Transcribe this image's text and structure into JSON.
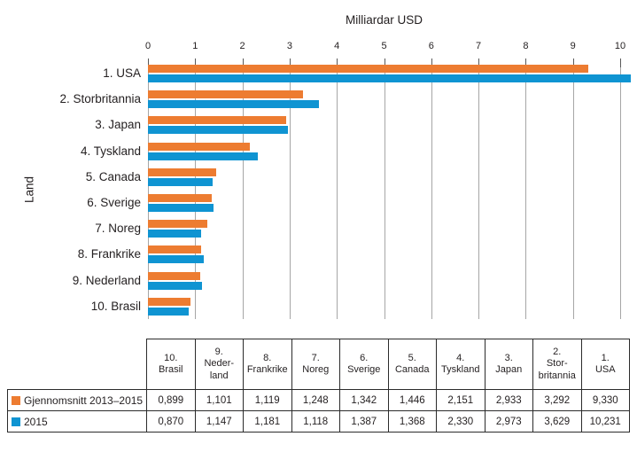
{
  "chart_data": {
    "type": "bar",
    "orientation": "horizontal",
    "title": "Milliardar USD",
    "xlabel": "Milliardar USD",
    "ylabel": "Land",
    "xlim": [
      0,
      10
    ],
    "x_ticks": [
      0,
      1,
      2,
      3,
      4,
      5,
      6,
      7,
      8,
      9,
      10
    ],
    "grid": "vertical",
    "legend_position": "in-table-rows",
    "categories": [
      "1. USA",
      "2. Storbritannia",
      "3. Japan",
      "4. Tyskland",
      "5. Canada",
      "6. Sverige",
      "7. Noreg",
      "8. Frankrike",
      "9. Nederland",
      "10. Brasil"
    ],
    "series": [
      {
        "name": "Gjennomsnitt 2013–2015",
        "color": "#ED7C31",
        "values": [
          9.33,
          3.292,
          2.933,
          2.151,
          1.446,
          1.342,
          1.248,
          1.119,
          1.101,
          0.899
        ]
      },
      {
        "name": "2015",
        "color": "#0F94D2",
        "values": [
          10.231,
          3.629,
          2.973,
          2.33,
          1.368,
          1.387,
          1.118,
          1.181,
          1.147,
          0.87
        ]
      }
    ],
    "colors": {
      "series1": "#ED7C31",
      "series2": "#0F94D2",
      "gridline": "#a6a6a6",
      "text": "#231f20"
    }
  },
  "table": {
    "column_headers": [
      "10.\nBrasil",
      "9.\nNeder-\nland",
      "8.\nFrankrike",
      "7.\nNoreg",
      "6.\nSverige",
      "5.\nCanada",
      "4.\nTyskland",
      "3.\nJapan",
      "2.\nStor-\nbritannia",
      "1.\nUSA"
    ],
    "rows": [
      {
        "label": "Gjennomsnitt 2013–2015",
        "swatch_color": "#ED7C31",
        "values": [
          "0,899",
          "1,101",
          "1,119",
          "1,248",
          "1,342",
          "1,446",
          "2,151",
          "2,933",
          "3,292",
          "9,330"
        ]
      },
      {
        "label": "2015",
        "swatch_color": "#0F94D2",
        "values": [
          "0,870",
          "1,147",
          "1,181",
          "1,118",
          "1,387",
          "1,368",
          "2,330",
          "2,973",
          "3,629",
          "10,231"
        ]
      }
    ]
  }
}
